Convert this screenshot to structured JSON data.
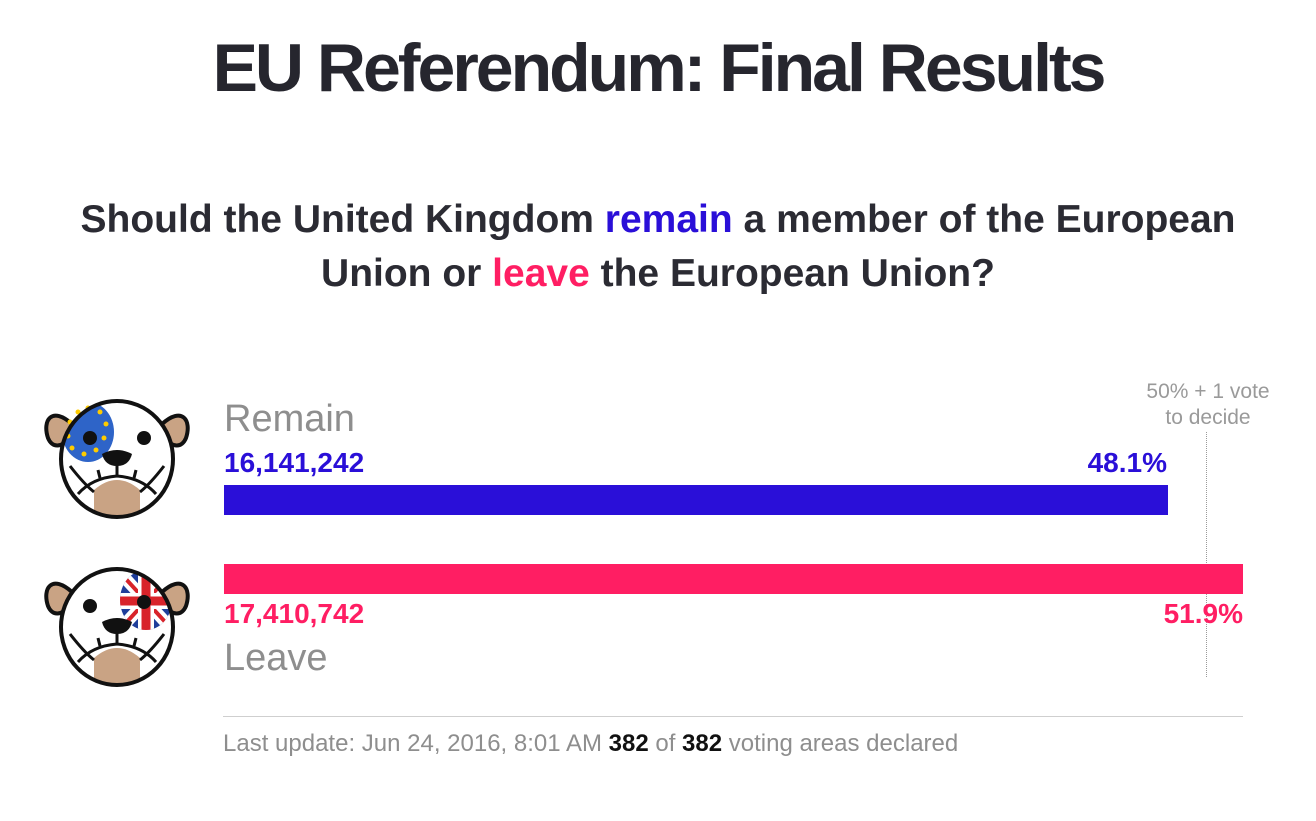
{
  "title": "EU Referendum: Final Results",
  "question": {
    "part1": "Should the United Kingdom ",
    "remain_word": "remain",
    "part2": " a member of the European Union or ",
    "leave_word": "leave",
    "part3": " the European Union?"
  },
  "threshold": {
    "line1": "50% + 1 vote",
    "line2": "to decide",
    "value": 50
  },
  "colors": {
    "remain": "#2a0fd8",
    "leave": "#ff1e63"
  },
  "chart_data": {
    "type": "bar",
    "orientation": "horizontal",
    "categories": [
      "Remain",
      "Leave"
    ],
    "values": [
      48.1,
      51.9
    ],
    "votes": [
      "16,141,242",
      "17,410,742"
    ],
    "percent_labels": [
      "48.1%",
      "51.9%"
    ],
    "xlim": [
      0,
      51.9
    ],
    "reference_line": 50,
    "grid": false
  },
  "footer": {
    "prefix": "Last update: Jun 24, 2016, 8:01 AM ",
    "declared": "382",
    "of": " of ",
    "total": "382",
    "suffix": " voting areas declared"
  },
  "icons": {
    "remain": "bulldog-eu-flag-icon",
    "leave": "bulldog-union-jack-icon"
  }
}
